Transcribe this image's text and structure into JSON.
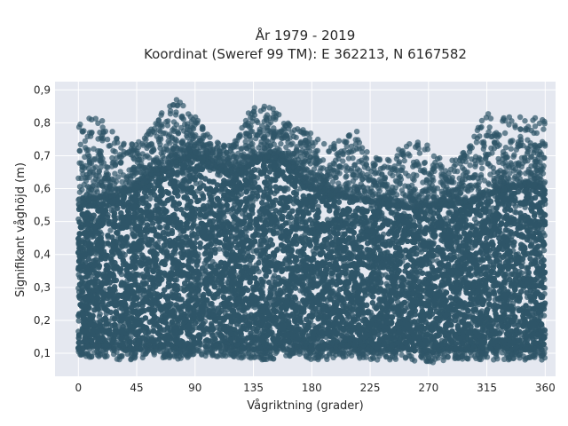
{
  "chart_data": {
    "type": "scatter",
    "title_line1": "År 1979 - 2019",
    "title_line2": "Koordinat (Sweref 99 TM): E 362213, N 6167582",
    "xlabel": "Vågriktning (grader)",
    "ylabel": "Signifikant våghöjd (m)",
    "xlim": [
      -18,
      368
    ],
    "ylim": [
      0.03,
      0.925
    ],
    "x_ticks": [
      0,
      45,
      90,
      135,
      180,
      225,
      270,
      315,
      360
    ],
    "x_tick_labels": [
      "0",
      "45",
      "90",
      "135",
      "180",
      "225",
      "270",
      "315",
      "360"
    ],
    "y_ticks": [
      0.1,
      0.2,
      0.3,
      0.4,
      0.5,
      0.6,
      0.7,
      0.8,
      0.9
    ],
    "y_tick_labels": [
      "0,1",
      "0,2",
      "0,3",
      "0,4",
      "0,5",
      "0,6",
      "0,7",
      "0,8",
      "0,9"
    ],
    "grid": true,
    "marker_color": "#2f5568",
    "plot_background": "#e5e8f0",
    "envelope": {
      "x": [
        0,
        15,
        30,
        45,
        60,
        75,
        90,
        105,
        120,
        135,
        150,
        165,
        180,
        195,
        210,
        225,
        240,
        255,
        270,
        285,
        300,
        315,
        330,
        345,
        360
      ],
      "dense_top": [
        0.55,
        0.57,
        0.58,
        0.6,
        0.64,
        0.68,
        0.7,
        0.67,
        0.63,
        0.68,
        0.7,
        0.66,
        0.6,
        0.58,
        0.57,
        0.56,
        0.55,
        0.54,
        0.55,
        0.55,
        0.56,
        0.58,
        0.6,
        0.61,
        0.6
      ],
      "max": [
        0.8,
        0.84,
        0.77,
        0.74,
        0.81,
        0.88,
        0.82,
        0.74,
        0.74,
        0.86,
        0.85,
        0.79,
        0.77,
        0.73,
        0.8,
        0.72,
        0.69,
        0.76,
        0.73,
        0.68,
        0.72,
        0.84,
        0.82,
        0.82,
        0.81
      ],
      "min": [
        0.08,
        0.09,
        0.08,
        0.08,
        0.09,
        0.08,
        0.09,
        0.09,
        0.09,
        0.08,
        0.08,
        0.09,
        0.08,
        0.08,
        0.09,
        0.08,
        0.08,
        0.08,
        0.07,
        0.08,
        0.08,
        0.08,
        0.08,
        0.08,
        0.08
      ]
    },
    "points_approx_count": 14000
  }
}
